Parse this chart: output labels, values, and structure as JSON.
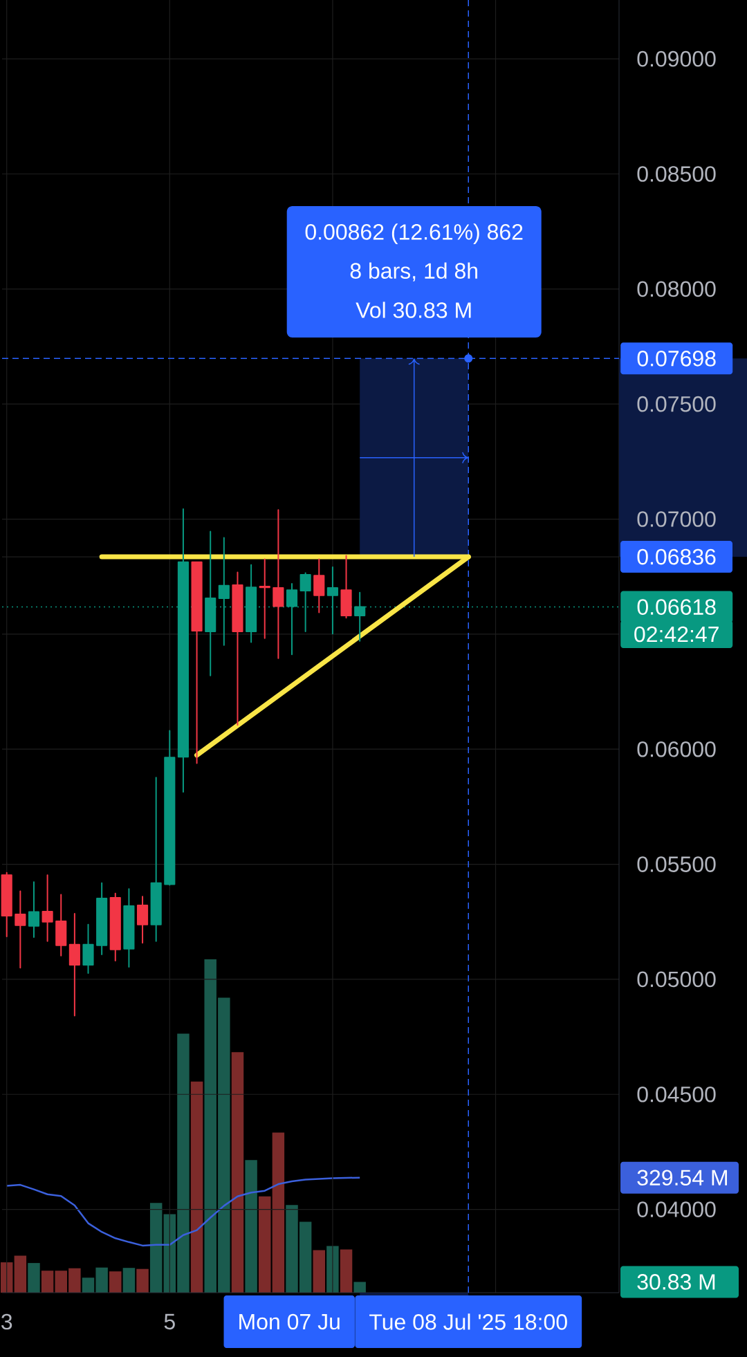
{
  "chart_data": {
    "type": "candlestick",
    "x": [
      "2025-07-03T02:00",
      "2025-07-03T06:00",
      "2025-07-03T10:00",
      "2025-07-03T14:00",
      "2025-07-03T18:00",
      "2025-07-03T22:00",
      "2025-07-04T02:00",
      "2025-07-04T06:00",
      "2025-07-04T10:00",
      "2025-07-04T14:00",
      "2025-07-04T18:00",
      "2025-07-04T22:00",
      "2025-07-05T02:00",
      "2025-07-05T06:00",
      "2025-07-05T10:00",
      "2025-07-05T14:00",
      "2025-07-05T18:00",
      "2025-07-05T22:00",
      "2025-07-06T02:00",
      "2025-07-06T06:00",
      "2025-07-06T10:00",
      "2025-07-06T14:00",
      "2025-07-06T18:00",
      "2025-07-06T22:00",
      "2025-07-07T02:00",
      "2025-07-07T06:00",
      "2025-07-07T10:00"
    ],
    "ohlc": [
      [
        0.05453,
        0.05463,
        0.05186,
        0.05276
      ],
      [
        0.05282,
        0.05383,
        0.0505,
        0.05235
      ],
      [
        0.05232,
        0.05423,
        0.05183,
        0.05293
      ],
      [
        0.05294,
        0.05453,
        0.05166,
        0.0525
      ],
      [
        0.05252,
        0.05368,
        0.05103,
        0.05148
      ],
      [
        0.05151,
        0.05285,
        0.04842,
        0.05063
      ],
      [
        0.05063,
        0.05238,
        0.05027,
        0.05151
      ],
      [
        0.05148,
        0.05418,
        0.05108,
        0.05351
      ],
      [
        0.05354,
        0.05373,
        0.05081,
        0.0513
      ],
      [
        0.05133,
        0.05393,
        0.05054,
        0.05318
      ],
      [
        0.05321,
        0.0536,
        0.05158,
        0.05238
      ],
      [
        0.05238,
        0.05877,
        0.05166,
        0.05418
      ],
      [
        0.05413,
        0.0608,
        0.0541,
        0.05964
      ],
      [
        0.05967,
        0.07044,
        0.05814,
        0.06813
      ],
      [
        0.06813,
        0.06813,
        0.05939,
        0.06515
      ],
      [
        0.06512,
        0.06946,
        0.0632,
        0.06656
      ],
      [
        0.06656,
        0.06919,
        0.06452,
        0.06711
      ],
      [
        0.06713,
        0.06769,
        0.06105,
        0.06512
      ],
      [
        0.06512,
        0.06801,
        0.06465,
        0.06703
      ],
      [
        0.06707,
        0.06826,
        0.06482,
        0.06703
      ],
      [
        0.06701,
        0.0704,
        0.06395,
        0.06621
      ],
      [
        0.06621,
        0.06719,
        0.06412,
        0.06691
      ],
      [
        0.06689,
        0.06766,
        0.06512,
        0.06758
      ],
      [
        0.06754,
        0.06826,
        0.06594,
        0.06669
      ],
      [
        0.06669,
        0.06791,
        0.06502,
        0.06701
      ],
      [
        0.06691,
        0.06841,
        0.06571,
        0.06581
      ],
      [
        0.06581,
        0.06681,
        0.0647,
        0.06618
      ]
    ],
    "colors": [
      "#f23645",
      "#f23645",
      "#089981",
      "#f23645",
      "#f23645",
      "#f23645",
      "#089981",
      "#089981",
      "#f23645",
      "#089981",
      "#f23645",
      "#089981",
      "#089981",
      "#089981",
      "#f23645",
      "#089981",
      "#089981",
      "#f23645",
      "#089981",
      "#f23645",
      "#f23645",
      "#089981",
      "#089981",
      "#f23645",
      "#089981",
      "#f23645",
      "#089981"
    ],
    "series": [
      {
        "type": "bar",
        "axis": "y2",
        "values": [
          87,
          106,
          85,
          63,
          63,
          70,
          43,
          72,
          61,
          71,
          68,
          257,
          225,
          742,
          605,
          955,
          845,
          689,
          380,
          276,
          459,
          251,
          203,
          122,
          134,
          124,
          30.83
        ],
        "colors": [
          "#7d2b2a",
          "#7d2b2a",
          "#1a5b4e",
          "#7d2b2a",
          "#7d2b2a",
          "#7d2b2a",
          "#1a5b4e",
          "#1a5b4e",
          "#7d2b2a",
          "#1a5b4e",
          "#7d2b2a",
          "#1a5b4e",
          "#1a5b4e",
          "#1a5b4e",
          "#7d2b2a",
          "#1a5b4e",
          "#1a5b4e",
          "#7d2b2a",
          "#1a5b4e",
          "#7d2b2a",
          "#7d2b2a",
          "#1a5b4e",
          "#1a5b4e",
          "#7d2b2a",
          "#1a5b4e",
          "#7d2b2a",
          "#1a5b4e"
        ]
      },
      {
        "type": "line",
        "axis": "y2",
        "color": "#3b60dc",
        "values": [
          306,
          309,
          296,
          282,
          277,
          250,
          199,
          174,
          156,
          145,
          135,
          137,
          137,
          165,
          179,
          215,
          249,
          276,
          287,
          292,
          311,
          319,
          324,
          326,
          328,
          329,
          329.54
        ]
      },
      {
        "type": "line",
        "color": "#f9e547",
        "x": [
          "2025-07-04T06:00",
          "2025-07-08T18:00"
        ],
        "values": [
          0.06836,
          0.06836
        ]
      },
      {
        "type": "line",
        "color": "#f9e547",
        "x": [
          "2025-07-05T10:00",
          "2025-07-08T18:00"
        ],
        "values": [
          0.05974,
          0.06836
        ]
      }
    ],
    "xlim": [
      "2025-07-03T00:38",
      "2025-07-10T14:22"
    ],
    "xticks": [
      {
        "value": "2025-07-03T02:00",
        "label": "3"
      },
      {
        "value": "2025-07-05T02:00",
        "label": "5"
      },
      {
        "value": "2025-07-07T02:00",
        "label": null
      },
      {
        "value": "2025-07-09T02:00",
        "label": null
      }
    ],
    "ylim": [
      0.03638,
      0.09256
    ],
    "yticks": [
      {
        "value": 0.04,
        "label": "0.04000"
      },
      {
        "value": 0.045,
        "label": "0.04500"
      },
      {
        "value": 0.05,
        "label": "0.05000"
      },
      {
        "value": 0.055,
        "label": "0.05500"
      },
      {
        "value": 0.06,
        "label": "0.06000"
      },
      {
        "value": 0.065,
        "label": null
      },
      {
        "value": 0.06836,
        "label": "0.06836"
      },
      {
        "value": 0.07,
        "label": "0.07000"
      },
      {
        "value": 0.075,
        "label": "0.07500"
      },
      {
        "value": 0.08,
        "label": "0.08000"
      },
      {
        "value": 0.085,
        "label": "0.08500"
      },
      {
        "value": 0.09,
        "label": "0.09000"
      }
    ],
    "y2lim": [
      0,
      3704
    ],
    "y2ticks": [
      {
        "value": 30.83,
        "label": "30.83 M"
      },
      {
        "value": 329.54,
        "label": "329.54 M"
      }
    ],
    "grid": true,
    "ref_lines": [
      {
        "axis": "y",
        "value": 0.07698,
        "label": "0.07698",
        "color": "#2962ff",
        "line_style": "dashed"
      },
      {
        "axis": "x",
        "value": "2025-07-08T18:00",
        "label": "Tue 08 Jul '25 18:00",
        "color": "#2962ff",
        "line_style": "dashed"
      },
      {
        "axis": "y",
        "value": 0.06618,
        "label": "0.06618",
        "color": "#089981",
        "line_style": "dotted"
      }
    ],
    "bands": [
      {
        "axis": "y",
        "from": 0.06836,
        "to": 0.07698,
        "color": "#0c1a44"
      }
    ],
    "annotations": [
      "0.00862 (12.61%) 862",
      "8 bars, 1d 8h",
      "Vol 30.83 M",
      "02:42:47",
      "Mon 07 Ju"
    ]
  }
}
